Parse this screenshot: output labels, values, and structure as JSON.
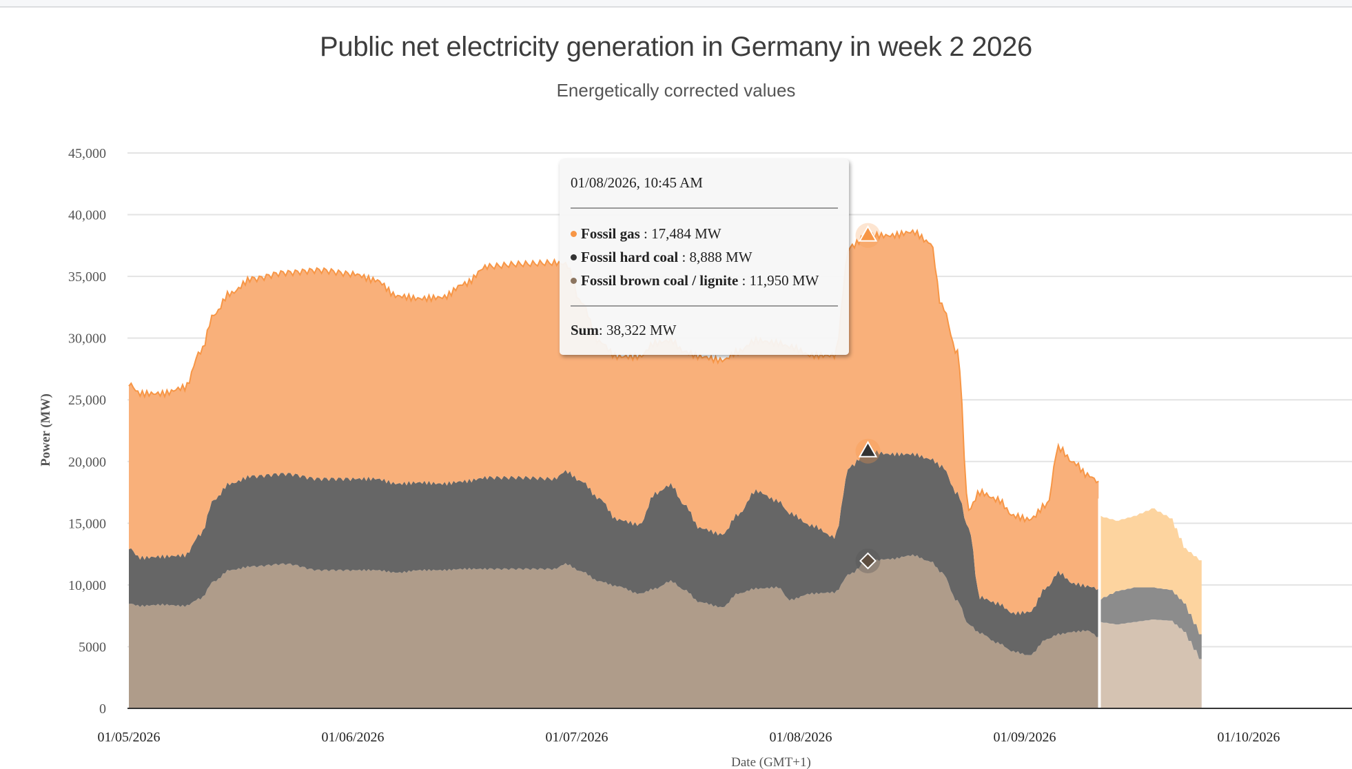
{
  "header": {
    "title": "Public net electricity generation in Germany in week 2 2026",
    "subtitle": "Energetically corrected values"
  },
  "tooltip": {
    "date": "01/08/2026, 10:45 AM",
    "rows": [
      {
        "name": "Fossil gas",
        "value": "17,484 MW",
        "color": "#f79646"
      },
      {
        "name": "Fossil hard coal",
        "value": "8,888 MW",
        "color": "#333333"
      },
      {
        "name": "Fossil brown coal / lignite",
        "value": "11,950 MW",
        "color": "#8c7560"
      }
    ],
    "sum_label": "Sum",
    "sum_value": "38,322 MW"
  },
  "chart_data": {
    "type": "area",
    "stacked": true,
    "title": "Public net electricity generation in Germany in week 2 2026",
    "subtitle": "Energetically corrected values",
    "xlabel": "Date (GMT+1)",
    "ylabel": "Power (MW)",
    "ylim": [
      0,
      45000
    ],
    "yticks": [
      0,
      5000,
      10000,
      15000,
      20000,
      25000,
      30000,
      35000,
      40000,
      45000
    ],
    "ytick_labels": [
      "0",
      "5000",
      "10,000",
      "15,000",
      "20,000",
      "25,000",
      "30,000",
      "35,000",
      "40,000",
      "45,000"
    ],
    "xlim_days": [
      0,
      5.5
    ],
    "xticks": [
      "01/05/2026",
      "01/06/2026",
      "01/07/2026",
      "01/08/2026",
      "01/09/2026",
      "01/10/2026"
    ],
    "grid": true,
    "legend": "none",
    "hover_day": 3.3,
    "forecast_start_day": 4.34,
    "series": [
      {
        "name": "Fossil brown coal / lignite",
        "color": "#af9c8a",
        "forecast_color": "#d5c3b2"
      },
      {
        "name": "Fossil hard coal",
        "color": "#666666",
        "forecast_color": "#8c8c8c"
      },
      {
        "name": "Fossil gas",
        "color": "#f9b07a",
        "line_color": "#f79646",
        "forecast_color": "#fdd49f"
      }
    ],
    "points_columns": [
      "day",
      "lignite_MW",
      "hard_coal_MW",
      "gas_MW"
    ],
    "points": [
      [
        0.0,
        8500,
        4500,
        13300
      ],
      [
        0.05,
        8300,
        3900,
        13300
      ],
      [
        0.15,
        8400,
        3900,
        13200
      ],
      [
        0.25,
        8300,
        4100,
        13600
      ],
      [
        0.32,
        8900,
        5200,
        14800
      ],
      [
        0.38,
        10300,
        6600,
        15000
      ],
      [
        0.45,
        11200,
        7000,
        15400
      ],
      [
        0.55,
        11500,
        7300,
        16000
      ],
      [
        0.7,
        11700,
        7300,
        16300
      ],
      [
        0.85,
        11200,
        7400,
        16900
      ],
      [
        1.0,
        11200,
        7400,
        16600
      ],
      [
        1.1,
        11200,
        7400,
        16100
      ],
      [
        1.2,
        11000,
        7200,
        15200
      ],
      [
        1.3,
        11200,
        7100,
        14900
      ],
      [
        1.4,
        11200,
        7000,
        15100
      ],
      [
        1.5,
        11300,
        7100,
        16000
      ],
      [
        1.6,
        11300,
        7400,
        17100
      ],
      [
        1.75,
        11300,
        7400,
        17300
      ],
      [
        1.9,
        11300,
        7300,
        17500
      ],
      [
        1.95,
        11700,
        7500,
        16800
      ],
      [
        2.02,
        11100,
        7300,
        14500
      ],
      [
        2.1,
        10300,
        6700,
        12700
      ],
      [
        2.18,
        9900,
        5400,
        13200
      ],
      [
        2.28,
        9300,
        5600,
        13600
      ],
      [
        2.35,
        9700,
        7700,
        12200
      ],
      [
        2.42,
        10300,
        7800,
        11700
      ],
      [
        2.48,
        9600,
        6900,
        12400
      ],
      [
        2.55,
        8600,
        6000,
        13900
      ],
      [
        2.65,
        8200,
        5900,
        14100
      ],
      [
        2.72,
        9300,
        6400,
        13200
      ],
      [
        2.8,
        9700,
        7900,
        12200
      ],
      [
        2.9,
        9800,
        7000,
        12800
      ],
      [
        2.95,
        8800,
        7000,
        13500
      ],
      [
        3.05,
        9300,
        5500,
        13800
      ],
      [
        3.15,
        9400,
        4500,
        14700
      ],
      [
        3.22,
        10900,
        8700,
        17800
      ],
      [
        3.3,
        11950,
        8888,
        17484
      ],
      [
        3.4,
        12100,
        8500,
        17700
      ],
      [
        3.5,
        12400,
        8200,
        18000
      ],
      [
        3.58,
        11900,
        8300,
        17500
      ],
      [
        3.63,
        11000,
        8600,
        13000
      ],
      [
        3.7,
        8700,
        8700,
        11400
      ],
      [
        3.75,
        6800,
        7800,
        1500
      ],
      [
        3.8,
        6100,
        2900,
        8500
      ],
      [
        3.88,
        5300,
        3200,
        8400
      ],
      [
        3.95,
        4600,
        3100,
        7900
      ],
      [
        4.02,
        4300,
        3500,
        7500
      ],
      [
        4.1,
        5600,
        4200,
        6700
      ],
      [
        4.15,
        6000,
        5000,
        10100
      ],
      [
        4.22,
        6200,
        3900,
        9800
      ],
      [
        4.28,
        6300,
        3600,
        9000
      ],
      [
        4.33,
        5800,
        3900,
        8700
      ]
    ],
    "forecast_points": [
      [
        4.34,
        7000,
        1800,
        6800
      ],
      [
        4.42,
        6800,
        2700,
        5700
      ],
      [
        4.5,
        7000,
        2800,
        5800
      ],
      [
        4.58,
        7200,
        2600,
        6400
      ],
      [
        4.66,
        7100,
        2500,
        5800
      ],
      [
        4.72,
        6200,
        2300,
        4500
      ],
      [
        4.79,
        4000,
        2000,
        6000
      ]
    ]
  }
}
